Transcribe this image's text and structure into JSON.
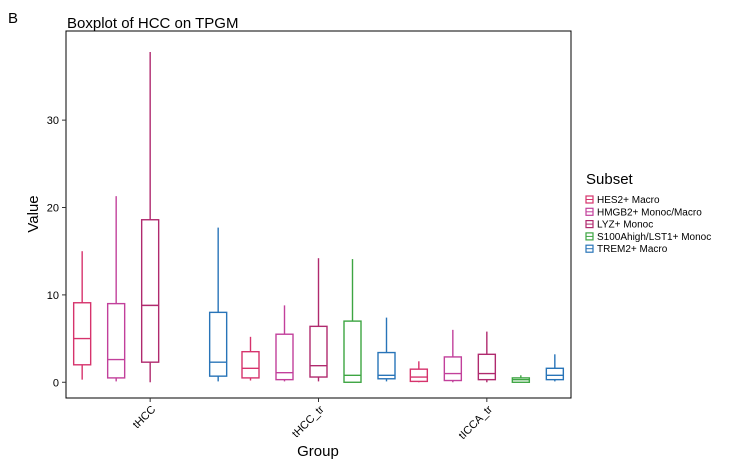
{
  "chart_data": {
    "type": "boxplot",
    "panel_label": "B",
    "title": "Boxplot of HCC on TPGM",
    "xlabel": "Group",
    "ylabel": "Value",
    "ylim": [
      -1.8,
      40.2
    ],
    "yticks": [
      0,
      10,
      20,
      30
    ],
    "categories": [
      "tHCC",
      "tHCC_tr",
      "tICCA_tr"
    ],
    "legend": {
      "title": "Subset",
      "position": "right"
    },
    "grid": false,
    "series": [
      {
        "name": "HES2+ Macro",
        "color": "#d6336c",
        "boxes": [
          {
            "min": 0.3,
            "q1": 2.0,
            "median": 5.0,
            "q3": 9.1,
            "max": 15.0
          },
          {
            "min": 0.2,
            "q1": 0.5,
            "median": 1.6,
            "q3": 3.5,
            "max": 5.2
          },
          {
            "min": 0.0,
            "q1": 0.1,
            "median": 0.6,
            "q3": 1.5,
            "max": 2.4
          }
        ]
      },
      {
        "name": "HMGB2+ Monoc/Macro",
        "color": "#c2409b",
        "boxes": [
          {
            "min": 0.1,
            "q1": 0.5,
            "median": 2.6,
            "q3": 9.0,
            "max": 21.3
          },
          {
            "min": 0.1,
            "q1": 0.3,
            "median": 1.1,
            "q3": 5.5,
            "max": 8.8
          },
          {
            "min": 0.0,
            "q1": 0.2,
            "median": 1.0,
            "q3": 2.9,
            "max": 6.0
          }
        ]
      },
      {
        "name": "LYZ+ Monoc",
        "color": "#b02a6e",
        "boxes": [
          {
            "min": 0.0,
            "q1": 2.3,
            "median": 8.8,
            "q3": 18.6,
            "max": 37.8
          },
          {
            "min": 0.1,
            "q1": 0.6,
            "median": 1.9,
            "q3": 6.4,
            "max": 14.2
          },
          {
            "min": 0.0,
            "q1": 0.3,
            "median": 1.0,
            "q3": 3.2,
            "max": 5.8
          }
        ]
      },
      {
        "name": "S100Ahigh/LST1+ Monoc",
        "color": "#3da542",
        "boxes": [
          null,
          {
            "min": 0.0,
            "q1": 0.0,
            "median": 0.8,
            "q3": 7.0,
            "max": 14.1
          },
          {
            "min": 0.0,
            "q1": 0.0,
            "median": 0.3,
            "q3": 0.5,
            "max": 0.8
          }
        ]
      },
      {
        "name": "TREM2+ Macro",
        "color": "#2874b8",
        "boxes": [
          {
            "min": 0.1,
            "q1": 0.7,
            "median": 2.3,
            "q3": 8.0,
            "max": 17.7
          },
          {
            "min": 0.1,
            "q1": 0.4,
            "median": 0.8,
            "q3": 3.4,
            "max": 7.4
          },
          {
            "min": 0.1,
            "q1": 0.3,
            "median": 0.8,
            "q3": 1.6,
            "max": 3.2
          }
        ]
      }
    ]
  }
}
